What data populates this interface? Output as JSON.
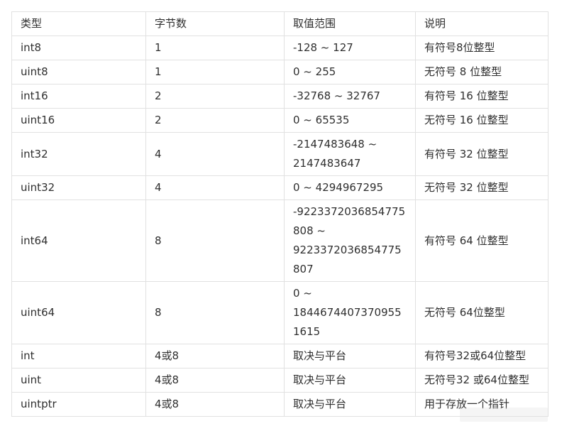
{
  "table": {
    "headers": [
      "类型",
      "字节数",
      "取值范围",
      "说明"
    ],
    "rows": [
      {
        "type": "int8",
        "bytes": "1",
        "range": "-128 ~ 127",
        "desc": "有符号8位整型"
      },
      {
        "type": "uint8",
        "bytes": "1",
        "range": "0 ~ 255",
        "desc": "无符号 8 位整型"
      },
      {
        "type": "int16",
        "bytes": "2",
        "range": "-32768 ~ 32767",
        "desc": "有符号 16 位整型"
      },
      {
        "type": "uint16",
        "bytes": "2",
        "range": "0 ~ 65535",
        "desc": "无符号 16 位整型"
      },
      {
        "type": "int32",
        "bytes": "4",
        "range": "-2147483648 ~ 2147483647",
        "desc": "有符号 32 位整型"
      },
      {
        "type": "uint32",
        "bytes": "4",
        "range": "0 ~ 4294967295",
        "desc": "无符号 32 位整型"
      },
      {
        "type": "int64",
        "bytes": "8",
        "range": "-9223372036854775808 ~ 9223372036854775807",
        "desc": "有符号 64 位整型"
      },
      {
        "type": "uint64",
        "bytes": "8",
        "range": "0 ~ 18446744073709551615",
        "desc": "无符号 64位整型"
      },
      {
        "type": "int",
        "bytes": "4或8",
        "range": "取决与平台",
        "desc": "有符号32或64位整型"
      },
      {
        "type": "uint",
        "bytes": "4或8",
        "range": "取决与平台",
        "desc": "无符号32 或64位整型"
      },
      {
        "type": "uintptr",
        "bytes": "4或8",
        "range": "取决与平台",
        "desc": "用于存放一个指针"
      }
    ]
  }
}
